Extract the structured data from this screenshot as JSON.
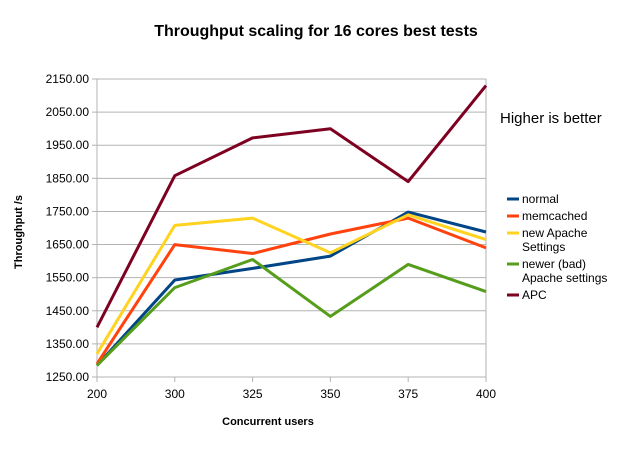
{
  "chart_data": {
    "type": "line",
    "title": "Throughput scaling for 16 cores best tests",
    "xlabel": "Concurrent users",
    "ylabel": "Throughput /s",
    "categories": [
      "200",
      "300",
      "325",
      "350",
      "375",
      "400"
    ],
    "ylim": [
      1250,
      2150
    ],
    "yticks": [
      "1250.00",
      "1350.00",
      "1450.00",
      "1550.00",
      "1650.00",
      "1750.00",
      "1850.00",
      "1950.00",
      "2050.00",
      "2150.00"
    ],
    "ytick_values": [
      1250,
      1350,
      1450,
      1550,
      1650,
      1750,
      1850,
      1950,
      2050,
      2150
    ],
    "grid": true,
    "legend_position": "right",
    "annotation": "Higher is better",
    "series": [
      {
        "name": "normal",
        "color": "#004586",
        "values": [
          1285,
          1543,
          1578,
          1615,
          1748,
          1688
        ]
      },
      {
        "name": "memcached",
        "color": "#ff420e",
        "values": [
          1290,
          1650,
          1623,
          1682,
          1730,
          1640
        ]
      },
      {
        "name": "new Apache Settings",
        "legend_lines": [
          "new Apache",
          "Settings"
        ],
        "color": "#ffd320",
        "values": [
          1320,
          1708,
          1730,
          1625,
          1740,
          1665
        ]
      },
      {
        "name": "newer (bad) Apache settings",
        "legend_lines": [
          "newer (bad)",
          "Apache settings"
        ],
        "color": "#579d1c",
        "values": [
          1285,
          1520,
          1605,
          1433,
          1590,
          1508
        ]
      },
      {
        "name": "APC",
        "color": "#7e0021",
        "values": [
          1400,
          1858,
          1972,
          2000,
          1840,
          2130
        ]
      }
    ]
  }
}
